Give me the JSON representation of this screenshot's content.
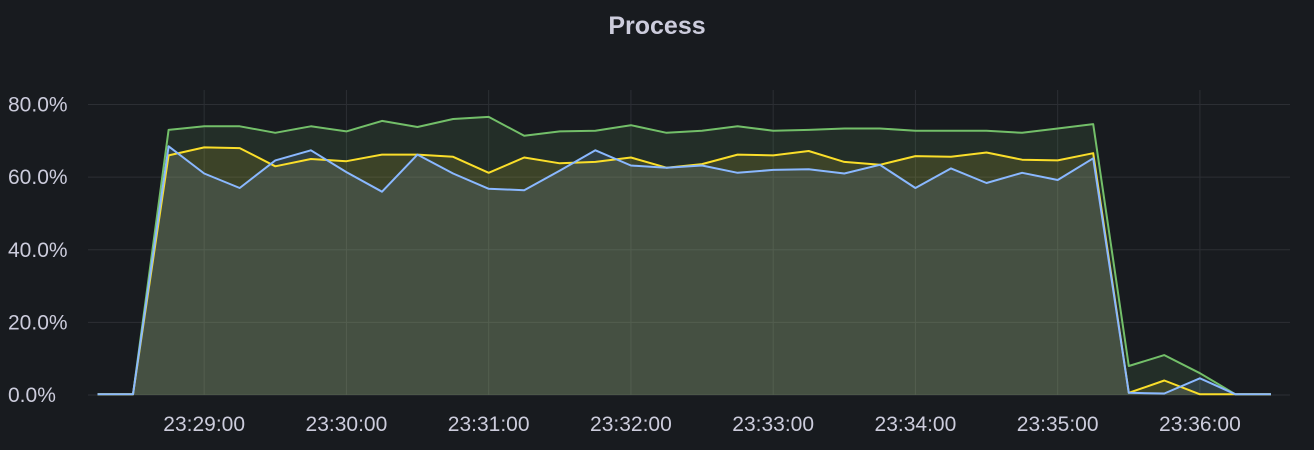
{
  "panel": {
    "title": "Process"
  },
  "chart_data": {
    "type": "area",
    "title": "Process",
    "xlabel": "",
    "ylabel": "",
    "grid": true,
    "legend": "none",
    "x": [
      "23:28:15",
      "23:28:30",
      "23:28:45",
      "23:29:00",
      "23:29:15",
      "23:29:30",
      "23:29:45",
      "23:30:00",
      "23:30:15",
      "23:30:30",
      "23:30:45",
      "23:31:00",
      "23:31:15",
      "23:31:30",
      "23:31:45",
      "23:32:00",
      "23:32:15",
      "23:32:30",
      "23:32:45",
      "23:33:00",
      "23:33:15",
      "23:33:30",
      "23:33:45",
      "23:34:00",
      "23:34:15",
      "23:34:30",
      "23:34:45",
      "23:35:00",
      "23:35:15",
      "23:35:30",
      "23:35:45",
      "23:36:00",
      "23:36:15",
      "23:36:30"
    ],
    "xlim": [
      "23:28:11",
      "23:36:38"
    ],
    "xticks": [
      "23:29:00",
      "23:30:00",
      "23:31:00",
      "23:32:00",
      "23:33:00",
      "23:34:00",
      "23:35:00",
      "23:36:00"
    ],
    "ylim": [
      0,
      84
    ],
    "yticks": [
      0,
      20,
      40,
      60,
      80
    ],
    "ytick_labels": [
      "0.0%",
      "20.0%",
      "40.0%",
      "60.0%",
      "80.0%"
    ],
    "series": [
      {
        "color": "#73bf69",
        "values": [
          0.2,
          0.2,
          73.0,
          74.0,
          74.0,
          72.2,
          74.0,
          72.6,
          75.5,
          73.8,
          76.0,
          76.6,
          71.4,
          72.6,
          72.8,
          74.3,
          72.2,
          72.8,
          74.0,
          72.8,
          73.0,
          73.4,
          73.4,
          72.8,
          72.8,
          72.8,
          72.2,
          73.4,
          74.6,
          8.0,
          11.0,
          6.0,
          0.2,
          0.2
        ]
      },
      {
        "color": "#fade2a",
        "values": [
          0.2,
          0.2,
          66.0,
          68.2,
          68.0,
          63.0,
          65.0,
          64.4,
          66.2,
          66.2,
          65.6,
          61.2,
          65.4,
          63.8,
          64.2,
          65.4,
          62.6,
          63.6,
          66.2,
          66.0,
          67.2,
          64.2,
          63.4,
          65.8,
          65.6,
          66.8,
          64.8,
          64.6,
          66.6,
          0.6,
          4.0,
          0.2,
          0.2,
          0.2
        ]
      },
      {
        "color": "#8ab8ff",
        "values": [
          0.2,
          0.2,
          68.5,
          61.0,
          57.0,
          64.6,
          67.4,
          61.4,
          56.0,
          66.2,
          61.0,
          56.8,
          56.4,
          61.8,
          67.4,
          63.2,
          62.6,
          63.2,
          61.2,
          62.0,
          62.2,
          61.0,
          63.4,
          57.0,
          62.4,
          58.4,
          61.2,
          59.2,
          65.2,
          0.6,
          0.4,
          4.6,
          0.2,
          0.2
        ]
      }
    ]
  }
}
